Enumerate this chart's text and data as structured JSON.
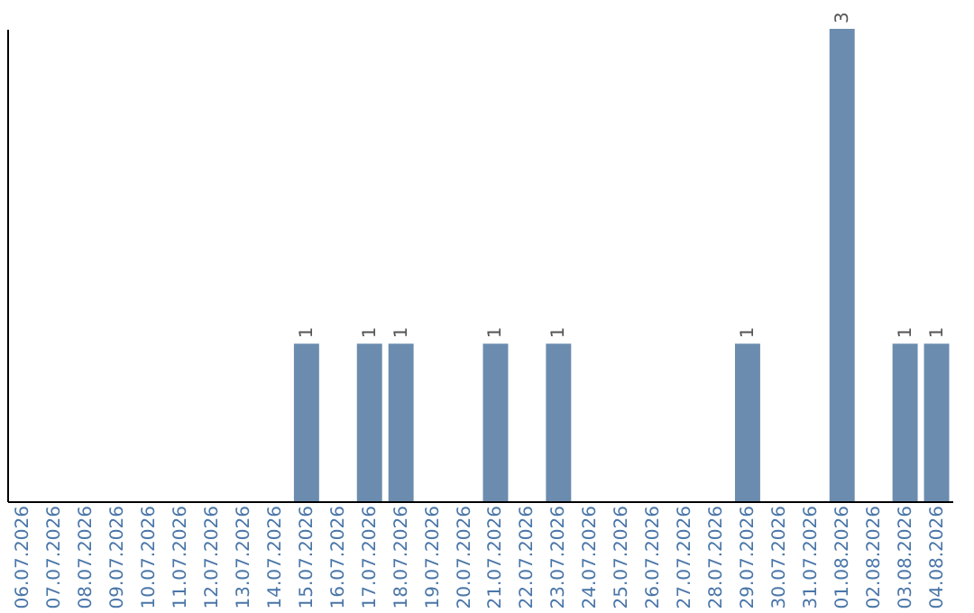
{
  "chart_data": {
    "type": "bar",
    "categories": [
      "06.07.2026",
      "07.07.2026",
      "08.07.2026",
      "09.07.2026",
      "10.07.2026",
      "11.07.2026",
      "12.07.2026",
      "13.07.2026",
      "14.07.2026",
      "15.07.2026",
      "16.07.2026",
      "17.07.2026",
      "18.07.2026",
      "19.07.2026",
      "20.07.2026",
      "21.07.2026",
      "22.07.2026",
      "23.07.2026",
      "24.07.2026",
      "25.07.2026",
      "26.07.2026",
      "27.07.2026",
      "28.07.2026",
      "29.07.2026",
      "30.07.2026",
      "31.07.2026",
      "01.08.2026",
      "02.08.2026",
      "03.08.2026",
      "04.08.2026"
    ],
    "values": [
      0,
      0,
      0,
      0,
      0,
      0,
      0,
      0,
      0,
      1,
      0,
      1,
      1,
      0,
      0,
      1,
      0,
      1,
      0,
      0,
      0,
      0,
      0,
      1,
      0,
      0,
      3,
      0,
      1,
      1
    ],
    "value_labels": [
      null,
      null,
      null,
      null,
      null,
      null,
      null,
      null,
      null,
      "1",
      null,
      "1",
      "1",
      null,
      null,
      "1",
      null,
      "1",
      null,
      null,
      null,
      null,
      null,
      "1",
      null,
      null,
      "3",
      null,
      "1",
      "1"
    ],
    "color": "#6b8cae",
    "grid": false
  }
}
